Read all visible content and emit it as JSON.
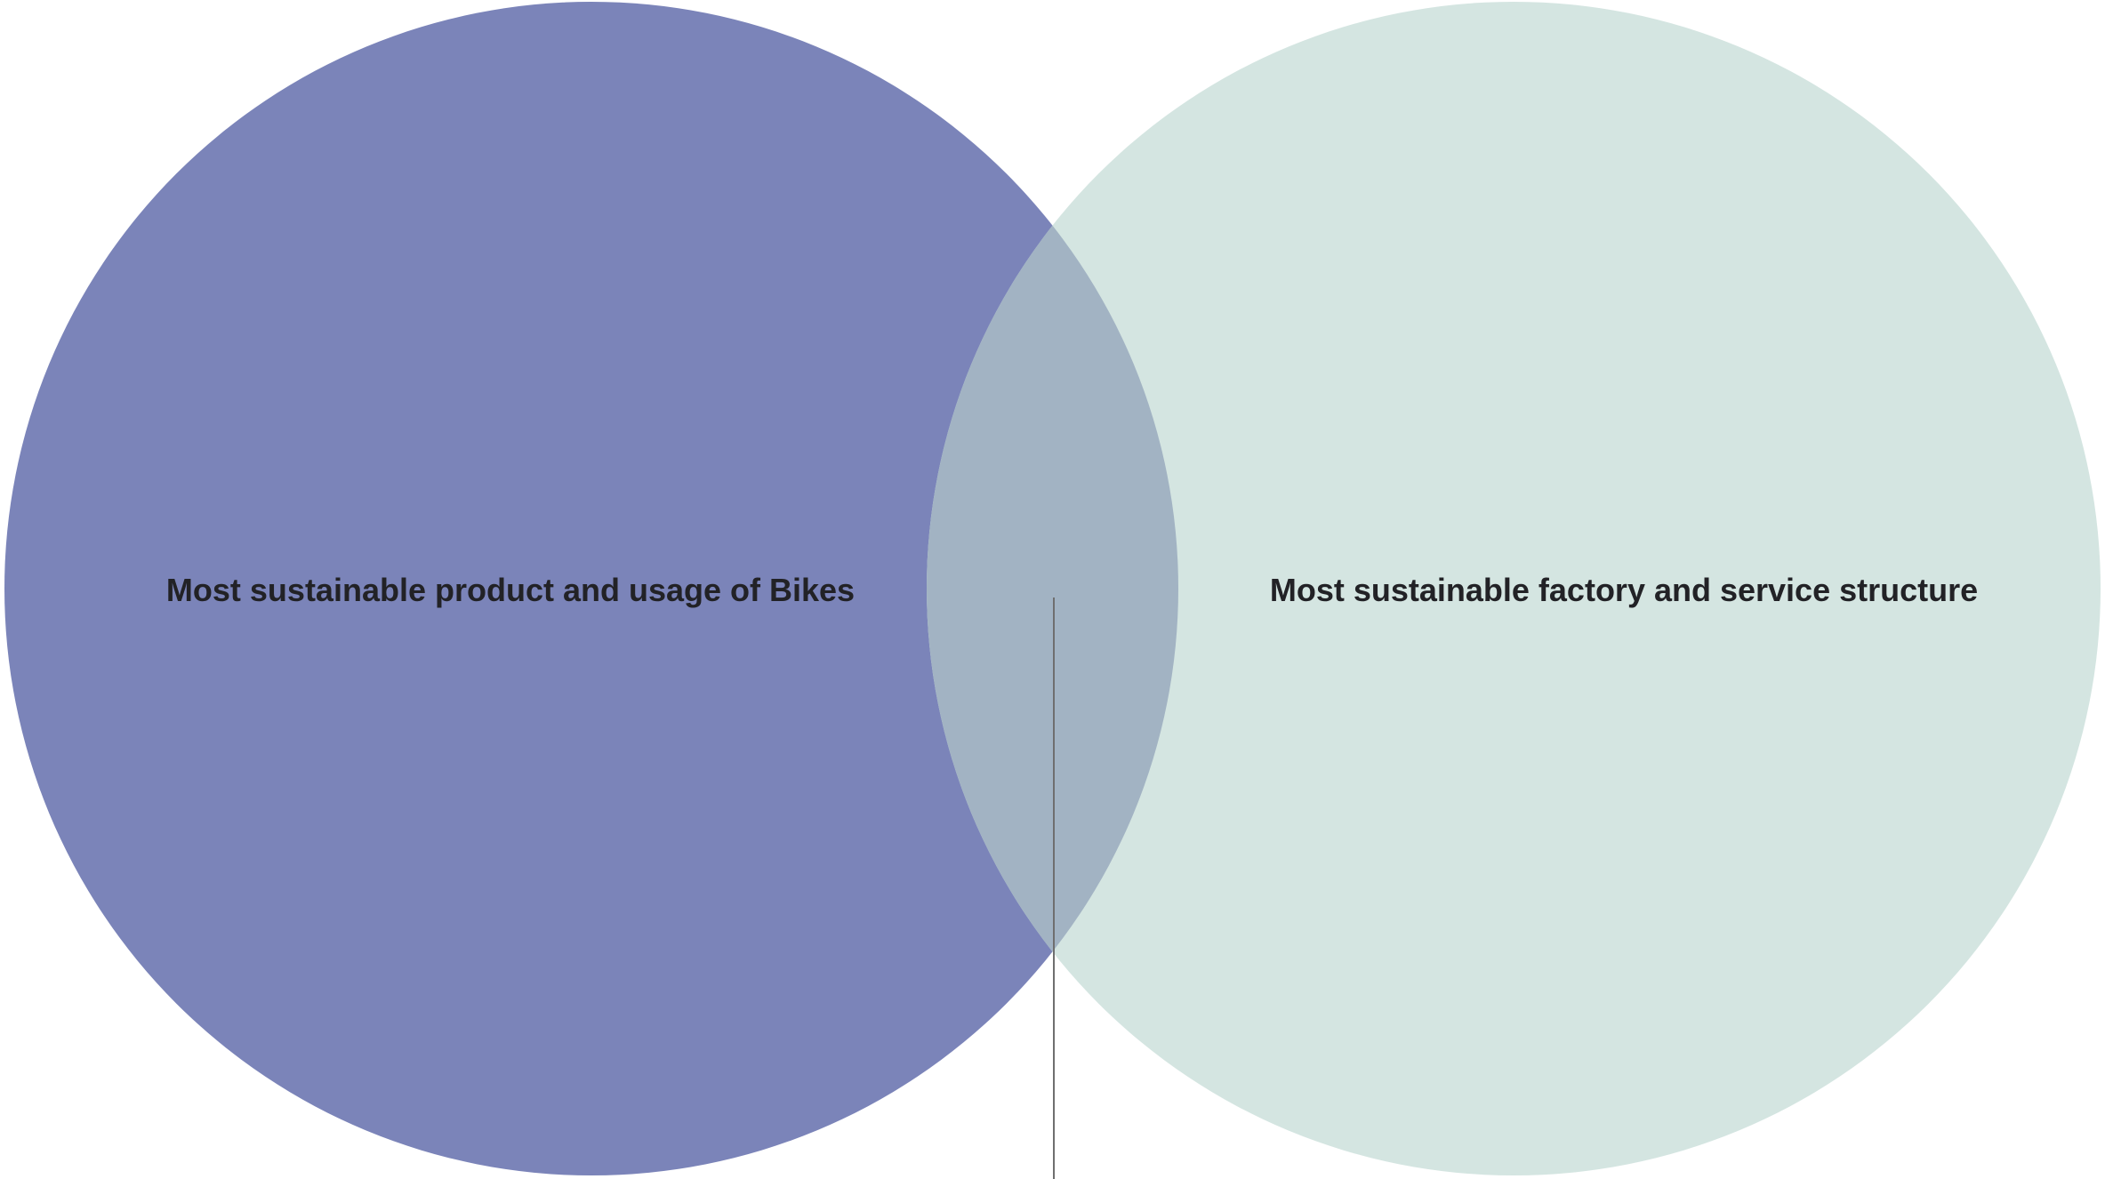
{
  "venn": {
    "left": {
      "label": "Most sustainable product and usage of Bikes",
      "color": "#7b84b9"
    },
    "right": {
      "label": "Most sustainable factory and service structure",
      "color": "#d4e5e1"
    },
    "overlap_color": "#a2b3c3",
    "connector_color": "#6f6f6f"
  }
}
